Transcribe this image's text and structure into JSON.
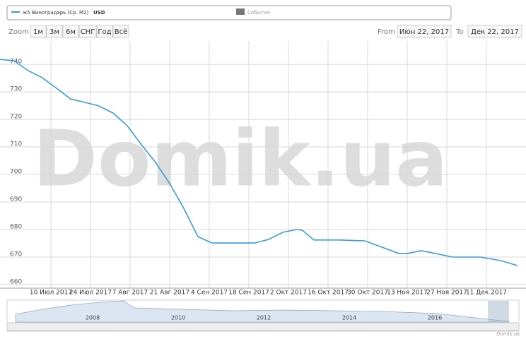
{
  "chart_data": {
    "type": "line",
    "legend": {
      "series_suffix": "USD",
      "events": "События"
    },
    "zoom": {
      "label": "Zoom",
      "buttons": [
        "1м",
        "3м",
        "6м",
        "СНГ",
        "Год",
        "Всё"
      ]
    },
    "range": {
      "from_label": "From",
      "from": "Июн 22, 2017",
      "to_label": "To",
      "to": "Дек 22, 2017"
    },
    "watermark": "Domik.ua",
    "credit": "Domik.us",
    "navigator_labels": [
      "2008",
      "2010",
      "2012",
      "2014",
      "2016"
    ],
    "x": [
      "2017-06-22",
      "2017-06-27",
      "2017-07-02",
      "2017-07-07",
      "2017-07-12",
      "2017-07-17",
      "2017-07-22",
      "2017-07-27",
      "2017-08-01",
      "2017-08-06",
      "2017-08-11",
      "2017-08-16",
      "2017-08-21",
      "2017-08-26",
      "2017-08-31",
      "2017-09-05",
      "2017-09-15",
      "2017-09-20",
      "2017-09-25",
      "2017-09-30",
      "2017-10-05",
      "2017-10-07",
      "2017-10-11",
      "2017-10-20",
      "2017-10-29",
      "2017-11-04",
      "2017-11-10",
      "2017-11-13",
      "2017-11-18",
      "2017-11-23",
      "2017-11-29",
      "2017-12-09",
      "2017-12-16",
      "2017-12-22"
    ],
    "series": [
      {
        "name": "ж5 Виноградарь (Ср. М2)",
        "color": "#3a9ad9",
        "values": [
          741.8,
          741.3,
          737.7,
          735.1,
          731.3,
          727.4,
          726.2,
          724.9,
          722.3,
          717.7,
          710.8,
          704.4,
          696.7,
          687.7,
          677.4,
          675.1,
          675.1,
          675.1,
          676.4,
          679.0,
          680.0,
          679.7,
          676.2,
          676.2,
          675.9,
          673.6,
          671.3,
          671.3,
          672.3,
          671.3,
          670.0,
          670.0,
          668.7,
          666.9
        ]
      }
    ],
    "xlim": [
      "2017-06-22",
      "2017-12-25"
    ],
    "xticks": [
      {
        "value": "2017-07-10",
        "label": "10 Июл 2017"
      },
      {
        "value": "2017-07-24",
        "label": "24 Июл 2017"
      },
      {
        "value": "2017-08-07",
        "label": "7 Авг 2017"
      },
      {
        "value": "2017-08-21",
        "label": "21 Авг 2017"
      },
      {
        "value": "2017-09-04",
        "label": "4 Сен 2017"
      },
      {
        "value": "2017-09-18",
        "label": "18 Сен 2017"
      },
      {
        "value": "2017-10-02",
        "label": "2 Окт 2017"
      },
      {
        "value": "2017-10-16",
        "label": "16 Окт 2017"
      },
      {
        "value": "2017-10-30",
        "label": "30 Окт 2017"
      },
      {
        "value": "2017-11-13",
        "label": "13 Ноя 2017"
      },
      {
        "value": "2017-11-27",
        "label": "27 Ноя 2017"
      },
      {
        "value": "2017-12-11",
        "label": "11 Дек 2017"
      }
    ],
    "ylim": [
      658.7,
      748.5
    ],
    "yticks": [
      660,
      670,
      680,
      690,
      700,
      710,
      720,
      730,
      740
    ],
    "grid": true
  }
}
